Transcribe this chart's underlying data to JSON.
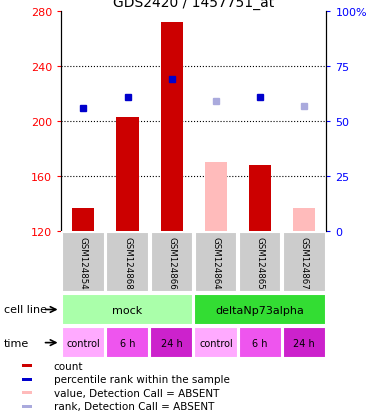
{
  "title": "GDS2420 / 1457751_at",
  "samples": [
    "GSM124854",
    "GSM124868",
    "GSM124866",
    "GSM124864",
    "GSM124865",
    "GSM124867"
  ],
  "count_values": [
    137,
    203,
    272,
    null,
    168,
    null
  ],
  "count_absent_values": [
    null,
    null,
    null,
    170,
    null,
    137
  ],
  "rank_values": [
    56,
    61,
    69,
    null,
    61,
    null
  ],
  "rank_absent_values": [
    null,
    null,
    null,
    59,
    null,
    57
  ],
  "ylim_left": [
    120,
    280
  ],
  "ylim_right": [
    0,
    100
  ],
  "yticks_left": [
    120,
    160,
    200,
    240,
    280
  ],
  "yticks_right": [
    0,
    25,
    50,
    75,
    100
  ],
  "cell_line_groups": [
    {
      "label": "mock",
      "start": 0,
      "end": 3,
      "color": "#aaffaa"
    },
    {
      "label": "deltaNp73alpha",
      "start": 3,
      "end": 6,
      "color": "#33dd33"
    }
  ],
  "time_labels": [
    "control",
    "6 h",
    "24 h",
    "control",
    "6 h",
    "24 h"
  ],
  "time_colors": [
    "#ffaaff",
    "#ee55ee",
    "#cc22cc",
    "#ffaaff",
    "#ee55ee",
    "#cc22cc"
  ],
  "bar_width": 0.5,
  "count_color": "#cc0000",
  "count_absent_color": "#ffbbbb",
  "rank_color": "#0000cc",
  "rank_absent_color": "#aaaadd",
  "grid_color": "#000000",
  "bg_color": "#ffffff",
  "label_area_color": "#cccccc",
  "cell_line_label": "cell line",
  "time_label": "time",
  "legend_items": [
    {
      "label": "count",
      "color": "#cc0000"
    },
    {
      "label": "percentile rank within the sample",
      "color": "#0000cc"
    },
    {
      "label": "value, Detection Call = ABSENT",
      "color": "#ffbbbb"
    },
    {
      "label": "rank, Detection Call = ABSENT",
      "color": "#aaaadd"
    }
  ]
}
